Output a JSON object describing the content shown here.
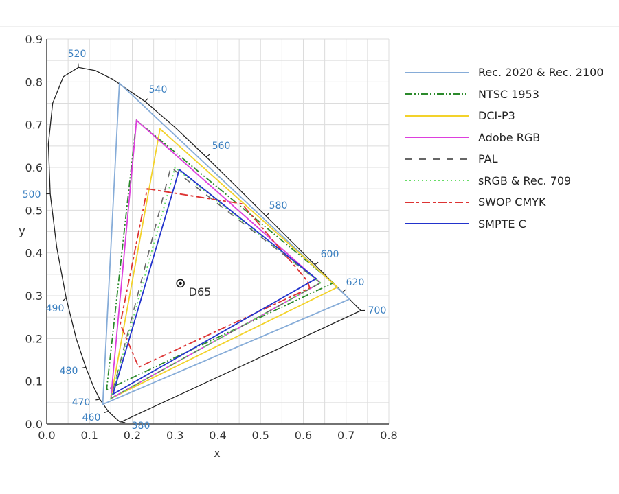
{
  "chart_data": {
    "type": "line",
    "xlabel": "x",
    "ylabel": "y",
    "xlim": [
      0.0,
      0.8
    ],
    "ylim": [
      0.0,
      0.9
    ],
    "xticks": [
      "0.0",
      "0.1",
      "0.2",
      "0.3",
      "0.4",
      "0.5",
      "0.6",
      "0.7",
      "0.8"
    ],
    "yticks": [
      "0.0",
      "0.1",
      "0.2",
      "0.3",
      "0.4",
      "0.5",
      "0.6",
      "0.7",
      "0.8",
      "0.9"
    ],
    "grid": true,
    "grid_step": 0.05,
    "legend_placement": "right",
    "spectral_locus": [
      [
        0.1741,
        0.005
      ],
      [
        0.1714,
        0.0051
      ],
      [
        0.1644,
        0.0109
      ],
      [
        0.1566,
        0.0177
      ],
      [
        0.144,
        0.0297
      ],
      [
        0.1241,
        0.0578
      ],
      [
        0.1096,
        0.0868
      ],
      [
        0.0913,
        0.1327
      ],
      [
        0.0687,
        0.2007
      ],
      [
        0.0454,
        0.295
      ],
      [
        0.0235,
        0.4127
      ],
      [
        0.0082,
        0.5384
      ],
      [
        0.0039,
        0.6548
      ],
      [
        0.0139,
        0.7502
      ],
      [
        0.0389,
        0.812
      ],
      [
        0.0743,
        0.8338
      ],
      [
        0.1142,
        0.8262
      ],
      [
        0.1547,
        0.8059
      ],
      [
        0.2296,
        0.7543
      ],
      [
        0.3016,
        0.6923
      ],
      [
        0.3731,
        0.6245
      ],
      [
        0.4441,
        0.5547
      ],
      [
        0.5125,
        0.4866
      ],
      [
        0.5752,
        0.4242
      ],
      [
        0.627,
        0.3725
      ],
      [
        0.6658,
        0.334
      ],
      [
        0.6915,
        0.3083
      ],
      [
        0.719,
        0.2809
      ],
      [
        0.7347,
        0.2653
      ]
    ],
    "wavelength_labels": [
      {
        "label": "520",
        "x": 0.0743,
        "y": 0.8338
      },
      {
        "label": "540",
        "x": 0.2296,
        "y": 0.7543
      },
      {
        "label": "560",
        "x": 0.3731,
        "y": 0.6245
      },
      {
        "label": "580",
        "x": 0.5125,
        "y": 0.4866
      },
      {
        "label": "600",
        "x": 0.627,
        "y": 0.3725
      },
      {
        "label": "620",
        "x": 0.6915,
        "y": 0.3083
      },
      {
        "label": "700",
        "x": 0.7347,
        "y": 0.2653
      },
      {
        "label": "500",
        "x": 0.0082,
        "y": 0.5384
      },
      {
        "label": "490",
        "x": 0.0454,
        "y": 0.295
      },
      {
        "label": "480",
        "x": 0.0913,
        "y": 0.1327
      },
      {
        "label": "470",
        "x": 0.1241,
        "y": 0.0578
      },
      {
        "label": "460",
        "x": 0.144,
        "y": 0.0297
      },
      {
        "label": "380",
        "x": 0.1741,
        "y": 0.005
      }
    ],
    "white_point": {
      "label": "D65",
      "x": 0.3127,
      "y": 0.329
    },
    "series": [
      {
        "name": "Rec. 2020 & Rec. 2100",
        "color": "#86acd8",
        "dash": "solid",
        "points": [
          [
            0.708,
            0.292
          ],
          [
            0.17,
            0.797
          ],
          [
            0.131,
            0.046
          ]
        ]
      },
      {
        "name": "NTSC 1953",
        "color": "#2b8a2b",
        "dash": "dash-dot-dot",
        "points": [
          [
            0.67,
            0.33
          ],
          [
            0.21,
            0.71
          ],
          [
            0.14,
            0.08
          ]
        ]
      },
      {
        "name": "DCI-P3",
        "color": "#f3d22a",
        "dash": "solid",
        "points": [
          [
            0.68,
            0.32
          ],
          [
            0.265,
            0.69
          ],
          [
            0.15,
            0.06
          ]
        ]
      },
      {
        "name": "Adobe RGB",
        "color": "#dd3fdd",
        "dash": "solid",
        "points": [
          [
            0.64,
            0.33
          ],
          [
            0.21,
            0.71
          ],
          [
            0.15,
            0.06
          ]
        ]
      },
      {
        "name": "PAL",
        "color": "#666666",
        "dash": "dashed",
        "points": [
          [
            0.64,
            0.33
          ],
          [
            0.29,
            0.6
          ],
          [
            0.15,
            0.06
          ]
        ]
      },
      {
        "name": "sRGB & Rec. 709",
        "color": "#66dd66",
        "dash": "dotted",
        "points": [
          [
            0.64,
            0.33
          ],
          [
            0.3,
            0.6
          ],
          [
            0.15,
            0.06
          ]
        ]
      },
      {
        "name": "SWOP CMYK",
        "color": "#dd3333",
        "dash": "dash-dot",
        "points": [
          [
            0.235,
            0.55
          ],
          [
            0.456,
            0.515
          ],
          [
            0.61,
            0.334
          ],
          [
            0.615,
            0.318
          ],
          [
            0.215,
            0.133
          ],
          [
            0.172,
            0.234
          ]
        ]
      },
      {
        "name": "SMPTE C",
        "color": "#2233cc",
        "dash": "solid",
        "points": [
          [
            0.63,
            0.34
          ],
          [
            0.31,
            0.595
          ],
          [
            0.155,
            0.07
          ]
        ]
      }
    ]
  }
}
